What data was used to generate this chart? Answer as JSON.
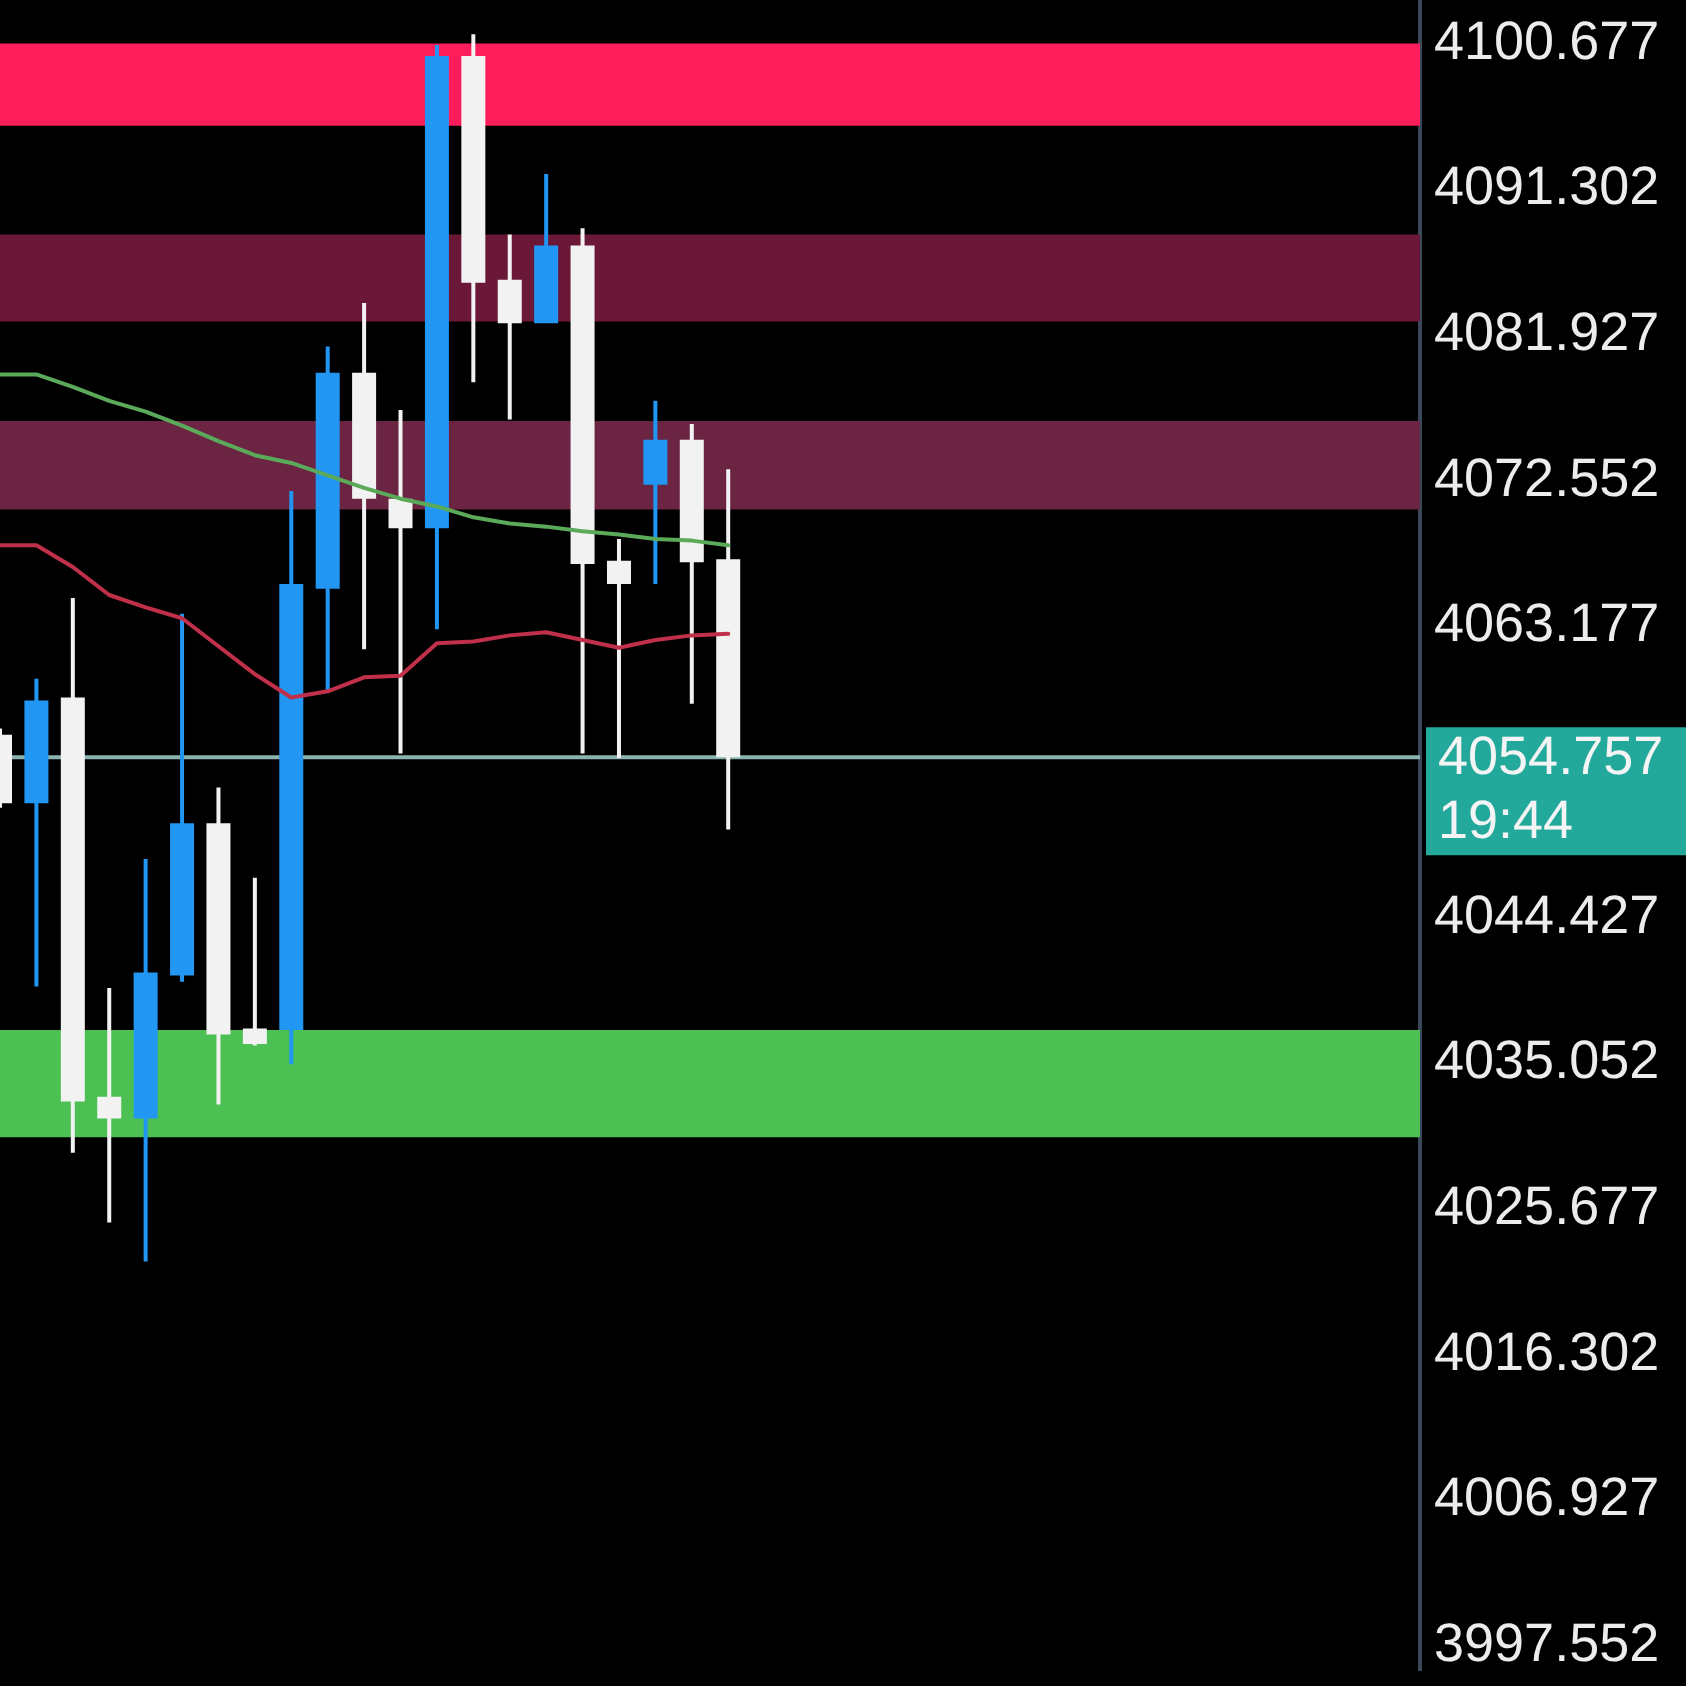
{
  "chart_data": {
    "type": "candlestick",
    "categories": [
      null,
      null,
      null,
      null,
      null,
      null,
      null,
      null,
      null,
      null,
      null,
      null,
      null,
      null,
      null,
      null,
      null,
      null,
      null,
      null,
      null,
      null,
      null,
      null,
      null,
      null,
      null,
      null,
      null,
      null,
      null,
      null,
      null,
      null,
      null,
      null,
      null,
      null,
      null,
      null
    ],
    "ohlc": [
      [
        4056.2,
        4056.6,
        4051.5,
        4051.8
      ],
      [
        4051.8,
        4059.8,
        4040.0,
        4058.4
      ],
      [
        4058.6,
        4065.0,
        4029.3,
        4032.6
      ],
      [
        4032.9,
        4039.9,
        4024.8,
        4031.5
      ],
      [
        4031.5,
        4048.2,
        4022.3,
        4040.9
      ],
      [
        4040.7,
        4064.0,
        4040.3,
        4050.5
      ],
      [
        4050.5,
        4052.8,
        4032.4,
        4036.9
      ],
      [
        4037.3,
        4047.0,
        4036.2,
        4036.3
      ],
      [
        4037.2,
        4071.9,
        4035.0,
        4065.9
      ],
      [
        4065.6,
        4081.2,
        4058.9,
        4079.5
      ],
      [
        4079.5,
        4084.0,
        4061.7,
        4071.4
      ],
      [
        4071.4,
        4077.1,
        4055.0,
        4069.5
      ],
      [
        4069.5,
        4100.6,
        4063.0,
        4099.9
      ],
      [
        4099.9,
        4101.3,
        4078.9,
        4085.3
      ],
      [
        4085.5,
        4088.4,
        4076.5,
        4082.7
      ],
      [
        4082.7,
        4092.3,
        4082.7,
        4087.7
      ],
      [
        4087.7,
        4088.8,
        4055.0,
        4067.2
      ],
      [
        4067.4,
        4068.8,
        4054.7,
        4065.9
      ],
      [
        4072.3,
        4077.7,
        4065.9,
        4075.2
      ],
      [
        4075.2,
        4076.2,
        4058.2,
        4067.3
      ],
      [
        4067.5,
        4073.3,
        4050.1,
        4054.757
      ],
      null,
      null,
      null,
      null,
      null,
      null,
      null,
      null,
      null,
      null,
      null,
      null,
      null,
      null,
      null,
      null,
      null,
      null,
      null
    ],
    "colors": [
      "#f2f2f2",
      "#2196f3",
      "#f2f2f2",
      "#f2f2f2",
      "#2196f3",
      "#2196f3",
      "#f2f2f2",
      "#f2f2f2",
      "#2196f3",
      "#2196f3",
      "#f2f2f2",
      "#f2f2f2",
      "#2196f3",
      "#f2f2f2",
      "#f2f2f2",
      "#2196f3",
      "#f2f2f2",
      "#f2f2f2",
      "#2196f3",
      "#f2f2f2",
      "#f2f2f2",
      null,
      null,
      null,
      null,
      null,
      null,
      null,
      null,
      null,
      null,
      null,
      null,
      null,
      null,
      null,
      null,
      null,
      null,
      null
    ],
    "series": [
      {
        "type": "line",
        "color": "#5aaa5a",
        "values": [
          4079.4,
          4079.4,
          4078.6,
          4077.7,
          4077.0,
          4076.1,
          4075.1,
          4074.2,
          4073.7,
          4072.9,
          4072.1,
          4071.4,
          4070.9,
          4070.2,
          4069.8,
          4069.6,
          4069.3,
          4069.1,
          4068.8,
          4068.7,
          4068.4,
          null,
          null,
          null,
          null,
          null,
          null,
          null,
          null,
          null,
          null,
          null,
          null,
          null,
          null,
          null,
          null,
          null,
          null,
          null
        ]
      },
      {
        "type": "line",
        "color": "#c0304a",
        "values": [
          4068.4,
          4068.4,
          4067.0,
          4065.2,
          4064.4,
          4063.7,
          4061.9,
          4060.1,
          4058.6,
          4059.0,
          4059.9,
          4060.0,
          4062.1,
          4062.2,
          4062.6,
          4062.8,
          4062.3,
          4061.8,
          4062.3,
          4062.6,
          4062.7,
          null,
          null,
          null,
          null,
          null,
          null,
          null,
          null,
          null,
          null,
          null,
          null,
          null,
          null,
          null,
          null,
          null,
          null,
          null
        ]
      }
    ],
    "marker": "none",
    "ylim": [
      3996.0,
      4103.5
    ],
    "yticks": [
      4100.677,
      4091.302,
      4081.927,
      4072.552,
      4063.177,
      4044.427,
      4035.052,
      4025.677,
      4016.302,
      4006.927,
      3997.552
    ],
    "tick_labels": "y",
    "bands": [
      {
        "axis": "y",
        "from": 4095.4,
        "to": 4100.7,
        "color": "#fd1d5b"
      },
      {
        "axis": "y",
        "from": 4082.8,
        "to": 4088.4,
        "color": "#6b1838"
      },
      {
        "axis": "y",
        "from": 4070.7,
        "to": 4076.4,
        "color": "#6c2443"
      },
      {
        "axis": "y",
        "from": 4030.3,
        "to": 4037.2,
        "color": "#4cc052"
      }
    ],
    "ref_lines": [
      {
        "axis": "y",
        "value": 4054.757,
        "label": "4054.757",
        "color": "#8db3b0"
      }
    ],
    "annotations": [
      "19:44"
    ]
  }
}
